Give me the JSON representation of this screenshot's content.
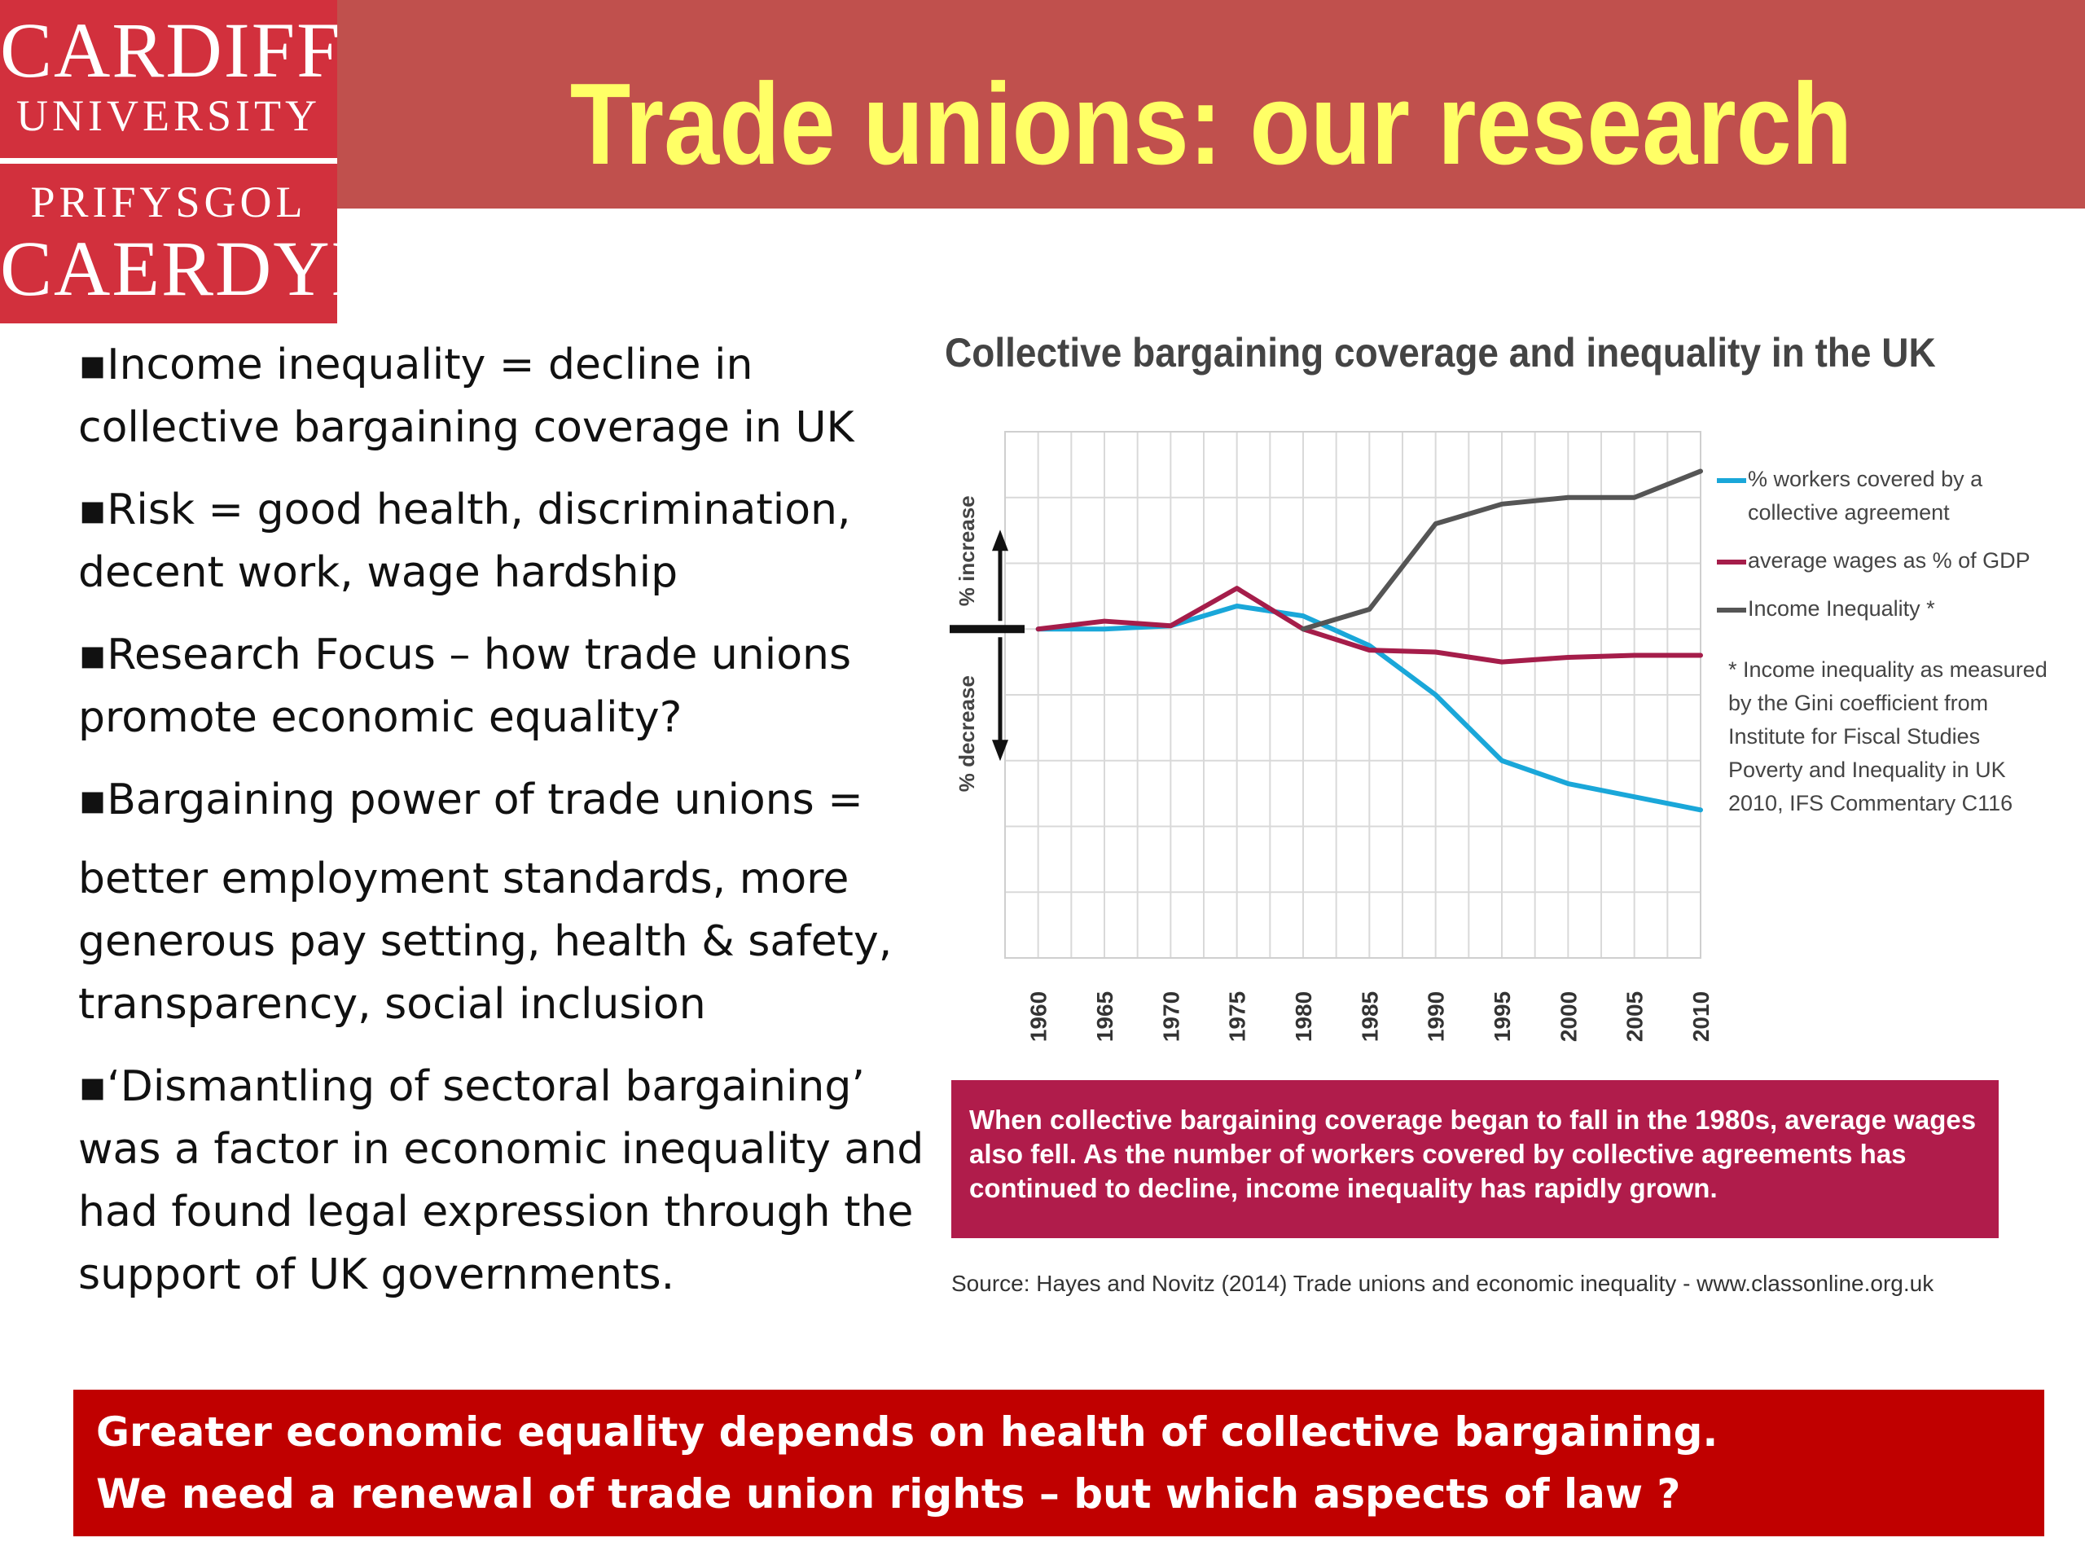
{
  "logo": {
    "line1": "CARDIFF",
    "line2": "UNIVERSITY",
    "line3": "PRIFYSGOL",
    "line4": "CAERDYDD"
  },
  "header": {
    "title": "Trade unions: our research"
  },
  "bullets": [
    "▪Income inequality = decline in collective bargaining coverage in UK",
    "▪Risk = good health, discrimination, decent work, wage hardship",
    "▪Research Focus – how trade unions promote economic equality?",
    "▪Bargaining power of trade unions =",
    "better employment standards, more generous pay setting, health & safety, transparency, social inclusion",
    "▪‘Dismantling of sectoral bargaining’ was a factor in economic inequality and had found legal expression through the support of UK governments."
  ],
  "chart_data": {
    "type": "line",
    "title": "Collective bargaining coverage and inequality in the UK",
    "x": [
      "1960",
      "1965",
      "1970",
      "1975",
      "1980",
      "1985",
      "1990",
      "1995",
      "2000",
      "2005",
      "2010"
    ],
    "ylabel_up": "% increase",
    "ylabel_down": "% decrease",
    "ylim": [
      -5,
      3
    ],
    "series": [
      {
        "name": "% workers covered by a collective agreement",
        "color": "#1aa7d9",
        "values": [
          0,
          0,
          0.05,
          0.35,
          0.2,
          -0.25,
          -1.0,
          -2.0,
          -2.35,
          -2.55,
          -2.75
        ]
      },
      {
        "name": "average wages as % of GDP",
        "color": "#a51d4a",
        "values": [
          0,
          0.12,
          0.05,
          0.62,
          0,
          -0.32,
          -0.35,
          -0.5,
          -0.43,
          -0.4,
          -0.4
        ]
      },
      {
        "name": "Income Inequality *",
        "color": "#555555",
        "values": [
          null,
          null,
          null,
          null,
          0,
          0.3,
          1.6,
          1.9,
          2.0,
          2.0,
          2.4
        ]
      }
    ],
    "legend_position": "right",
    "note": "* Income inequality as measured by the Gini coefficient from Institute for Fiscal Studies Poverty and Inequality in UK 2010, IFS Commentary C116",
    "grid": true
  },
  "infobox": {
    "text": "When collective bargaining coverage began to fall in the 1980s, average wages also fell. As the number of workers covered by collective agreements has continued to decline, income inequality has rapidly grown."
  },
  "source": {
    "text": "Source: Hayes and Novitz (2014) Trade unions and economic inequality - www.classonline.org.uk"
  },
  "conclusion": {
    "line1": "Greater economic equality depends on health of collective bargaining.",
    "line2": "We need a renewal of trade union rights – but which aspects of law ?"
  }
}
